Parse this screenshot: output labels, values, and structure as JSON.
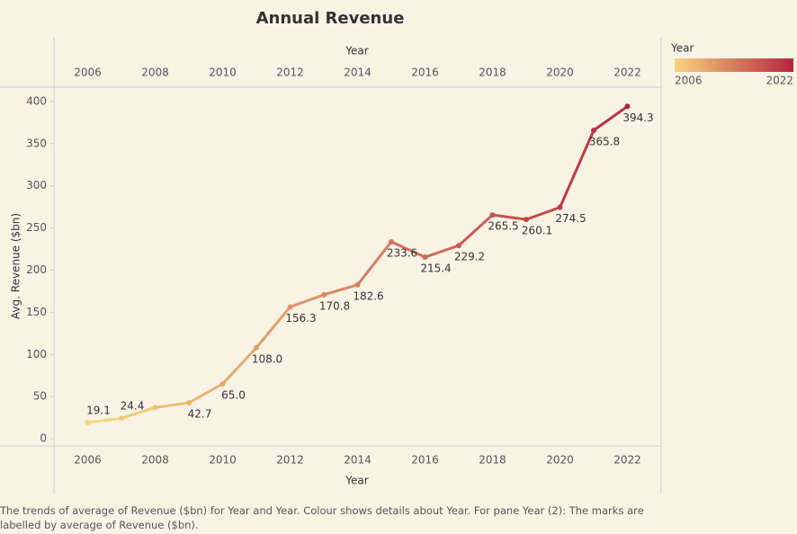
{
  "chart_data": {
    "type": "line",
    "title": "Annual Revenue",
    "x": [
      2006,
      2007,
      2008,
      2009,
      2010,
      2011,
      2012,
      2013,
      2014,
      2015,
      2016,
      2017,
      2018,
      2019,
      2020,
      2021,
      2022
    ],
    "values": [
      19.1,
      24.4,
      37,
      42.7,
      65.0,
      108.0,
      156.3,
      170.8,
      182.6,
      233.6,
      215.4,
      229.2,
      265.5,
      260.1,
      274.5,
      365.8,
      394.3
    ],
    "value_labels": [
      "19.1",
      "24.4",
      null,
      "42.7",
      "65.0",
      "108.0",
      "156.3",
      "170.8",
      "182.6",
      "233.6",
      "215.4",
      "229.2",
      "265.5",
      "260.1",
      "274.5",
      "365.8",
      "394.3"
    ],
    "xlabel": "Year",
    "x2label": "Year",
    "ylabel": "Avg. Revenue ($bn)",
    "xlim": [
      2005,
      2023
    ],
    "xticks": [
      2006,
      2008,
      2010,
      2012,
      2014,
      2016,
      2018,
      2020,
      2022
    ],
    "x2ticks": [
      2006,
      2008,
      2010,
      2012,
      2014,
      2016,
      2018,
      2020,
      2022
    ],
    "ylim": [
      -8.5,
      417
    ],
    "yticks": [
      0,
      50,
      100,
      150,
      200,
      250,
      300,
      350,
      400
    ],
    "color_legend": {
      "title": "Year",
      "min": 2006,
      "max": 2022,
      "colors": [
        "#f7d57c",
        "#b5253f"
      ]
    },
    "caption": "The trends of average of Revenue ($bn) for Year and Year.  Colour shows details about Year.  For pane Year (2):  The marks are labelled by average of Revenue ($bn)."
  }
}
